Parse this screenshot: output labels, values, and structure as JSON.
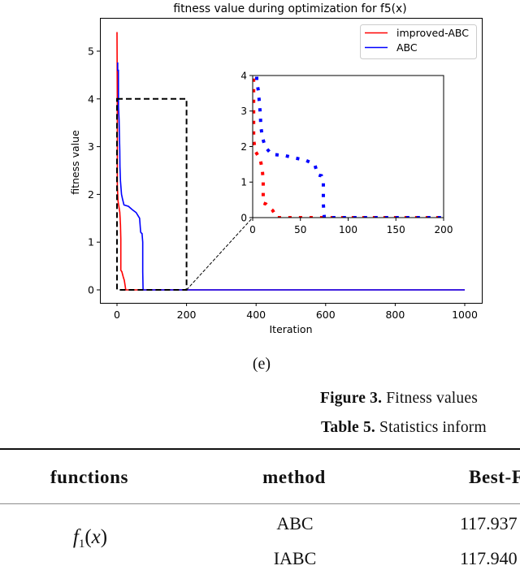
{
  "figure": {
    "subfigure_label": "(e)",
    "caption_label": "Figure 3.",
    "caption_text": " Fitness values"
  },
  "table": {
    "caption_label": "Table 5.",
    "caption_text": " Statistics inform",
    "headers": [
      "functions",
      "method",
      "Best-F"
    ],
    "function_group": {
      "symbol": "f",
      "subscript": "1",
      "open": "(",
      "argument": "x",
      "close": ")"
    },
    "rows": [
      {
        "method": "ABC",
        "best": "117.937"
      },
      {
        "method": "IABC",
        "best": "117.940"
      }
    ]
  },
  "chart_data": {
    "type": "line",
    "title": "fitness value during optimization for f5(x)",
    "xlabel": "Iteration",
    "ylabel": "fitness value",
    "xlim": [
      -49,
      1049
    ],
    "ylim": [
      -0.27,
      5.7
    ],
    "xticks": [
      0,
      200,
      400,
      600,
      800,
      1000
    ],
    "yticks": [
      0,
      1,
      2,
      3,
      4,
      5
    ],
    "grid": false,
    "legend": {
      "position": "upper right",
      "entries": [
        "improved-ABC",
        "ABC"
      ]
    },
    "series": [
      {
        "name": "improved-ABC",
        "color": "#ff0000",
        "x": [
          0,
          1,
          1,
          3,
          8,
          10,
          11,
          11,
          14,
          18,
          21,
          24,
          25,
          1000
        ],
        "y": [
          5.4,
          3.8,
          2.18,
          1.86,
          1.63,
          1.36,
          1.06,
          0.41,
          0.38,
          0.27,
          0.2,
          0.06,
          0,
          0
        ]
      },
      {
        "name": "ABC",
        "color": "#0000ff",
        "x": [
          0,
          2,
          2,
          4,
          4.3,
          6,
          7,
          8,
          8.5,
          10,
          13,
          16,
          20,
          33,
          44,
          55,
          65,
          68,
          70,
          72,
          74,
          74,
          75,
          1000
        ],
        "y": [
          4.75,
          4.75,
          4.6,
          4.6,
          3.84,
          3.56,
          3.23,
          2.92,
          2.58,
          2.28,
          2.0,
          1.9,
          1.78,
          1.75,
          1.68,
          1.62,
          1.5,
          1.21,
          1.19,
          1.18,
          1.0,
          0.38,
          0,
          0
        ]
      }
    ],
    "zoom_region": {
      "x": [
        0,
        200
      ],
      "y": [
        0,
        4
      ],
      "style": "black dashed rectangle"
    },
    "inset": {
      "xlim": [
        0,
        200
      ],
      "ylim": [
        0,
        4
      ],
      "xticks": [
        0,
        50,
        100,
        150,
        200
      ],
      "yticks": [
        0,
        1,
        2,
        3,
        4
      ],
      "linestyle": "dotted"
    }
  }
}
